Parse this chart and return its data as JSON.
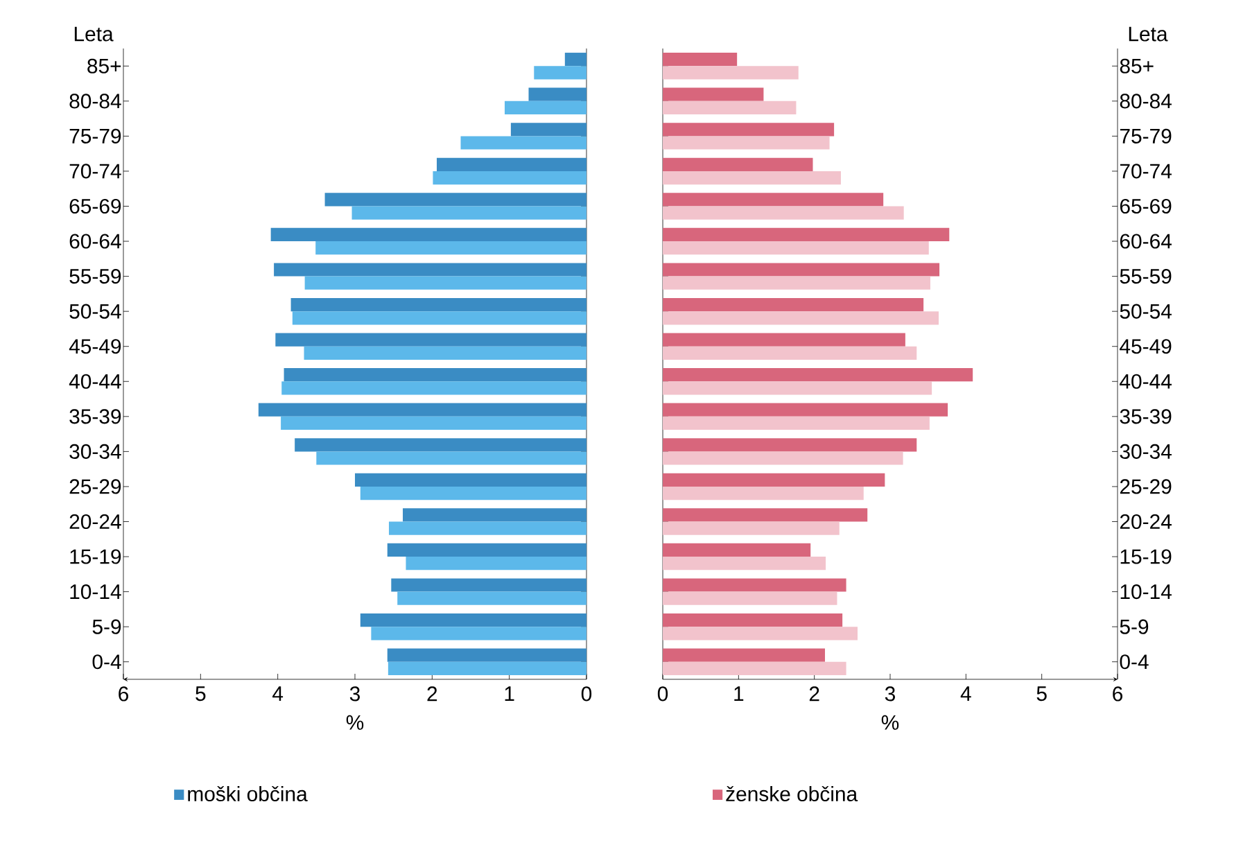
{
  "chart_data": [
    {
      "type": "bar",
      "orientation": "horizontal",
      "xlabel": "%",
      "ylabel": "Leta",
      "categories": [
        "85+",
        "80-84",
        "75-79",
        "70-74",
        "65-69",
        "60-64",
        "55-59",
        "50-54",
        "45-49",
        "40-44",
        "35-39",
        "30-34",
        "25-29",
        "20-24",
        "15-19",
        "10-14",
        "5-9",
        "0-4"
      ],
      "series": [
        {
          "name": "moški občina",
          "color": "#3a8cc4",
          "values": [
            0.28,
            0.75,
            0.98,
            1.94,
            3.39,
            4.09,
            4.05,
            3.83,
            4.03,
            3.92,
            4.25,
            3.78,
            3.0,
            2.38,
            2.58,
            2.53,
            2.93,
            2.58
          ]
        },
        {
          "color": "#5cb8ea",
          "values": [
            0.68,
            1.06,
            1.63,
            1.99,
            3.04,
            3.51,
            3.65,
            3.81,
            3.66,
            3.95,
            3.96,
            3.5,
            2.93,
            2.56,
            2.34,
            2.45,
            2.79,
            2.57
          ]
        }
      ],
      "xlim": [
        6,
        0
      ],
      "xticks": [
        0,
        1,
        2,
        3,
        4,
        5,
        6
      ],
      "legend": "bottom"
    },
    {
      "type": "bar",
      "orientation": "horizontal",
      "xlabel": "%",
      "ylabel": "Leta",
      "categories": [
        "85+",
        "80-84",
        "75-79",
        "70-74",
        "65-69",
        "60-64",
        "55-59",
        "50-54",
        "45-49",
        "40-44",
        "35-39",
        "30-34",
        "25-29",
        "20-24",
        "15-19",
        "10-14",
        "5-9",
        "0-4"
      ],
      "series": [
        {
          "name": "ženske občina",
          "color": "#d8667c",
          "values": [
            0.98,
            1.33,
            2.26,
            1.98,
            2.91,
            3.78,
            3.65,
            3.44,
            3.2,
            4.09,
            3.76,
            3.35,
            2.93,
            2.7,
            1.95,
            2.42,
            2.37,
            2.14
          ]
        },
        {
          "color": "#f2c3cc",
          "values": [
            1.79,
            1.76,
            2.2,
            2.35,
            3.18,
            3.51,
            3.53,
            3.64,
            3.35,
            3.55,
            3.52,
            3.17,
            2.65,
            2.33,
            2.15,
            2.3,
            2.57,
            2.42
          ]
        }
      ],
      "xlim": [
        0,
        6
      ],
      "xticks": [
        0,
        1,
        2,
        3,
        4,
        5,
        6
      ],
      "legend": "bottom"
    }
  ]
}
